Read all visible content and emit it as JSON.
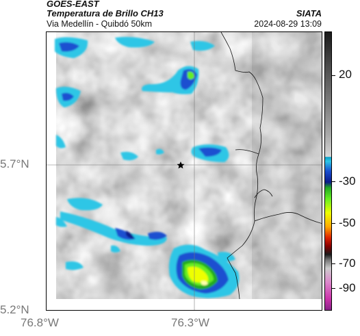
{
  "header": {
    "satellite": "GOES-EAST",
    "product": "Temperatura de Brillo CH13",
    "route": "Via Medellín - Quibdó 50km",
    "agency": "SIATA",
    "datetime": "2024-08-29 13:09"
  },
  "axes": {
    "y_ticks": [
      {
        "label": "5.7°N",
        "value": 5.7
      },
      {
        "label": "5.2°N",
        "value": 5.2
      }
    ],
    "x_ticks": [
      {
        "label": "76.8°W",
        "value": -76.8
      },
      {
        "label": "76.3°W",
        "value": -76.3
      }
    ]
  },
  "colorbar": {
    "ticks": [
      "20",
      "-30",
      "-50",
      "-70",
      "-90"
    ]
  },
  "map": {
    "marker_icon": "star-icon",
    "palette": {
      "warm_gray": "#b8b8b8",
      "cold_cyan": "#2ec6e6",
      "cold_blue": "#1a4fd0",
      "very_cold_green": "#66ee22",
      "coldest_yellow": "#eeff00"
    }
  }
}
